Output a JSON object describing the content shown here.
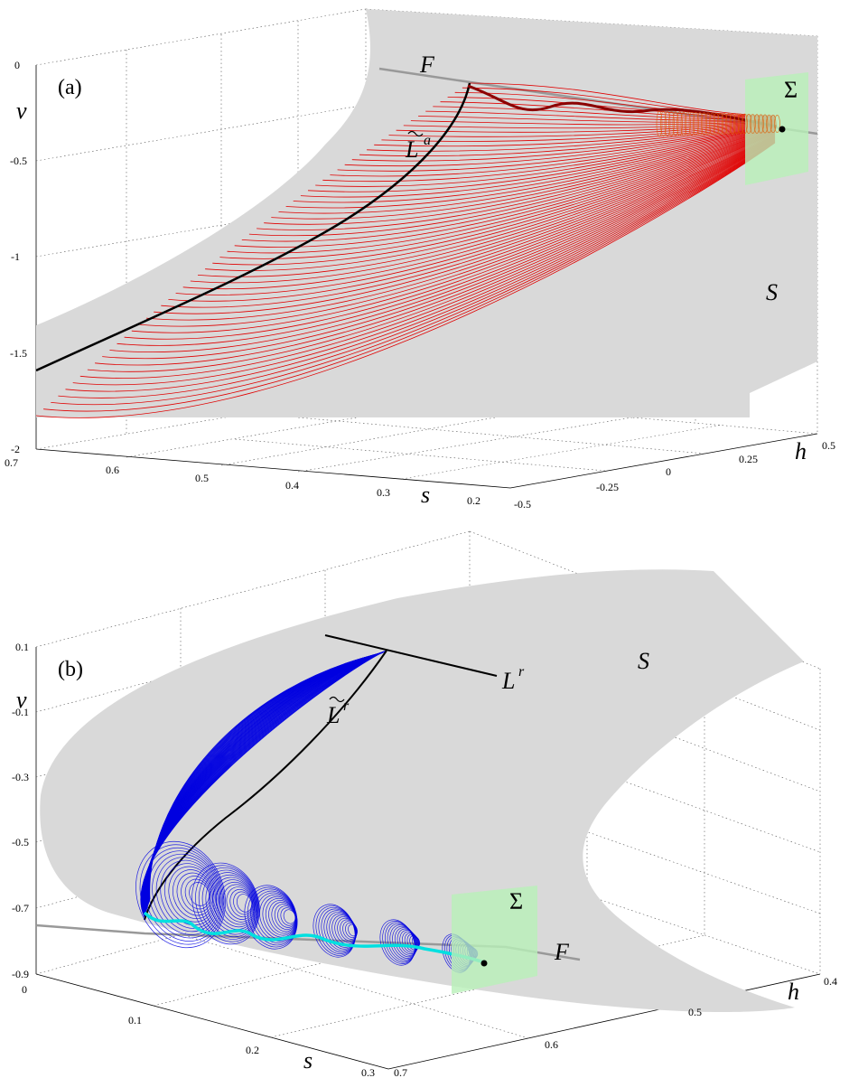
{
  "chart_data": [
    {
      "panel": "(a)",
      "type": "line",
      "axes": {
        "v": {
          "label": "v",
          "ticks": [
            "0",
            "-0.5",
            "-1",
            "-1.5",
            "-2"
          ]
        },
        "s": {
          "label": "s",
          "ticks": [
            "0.7",
            "0.6",
            "0.5",
            "0.4",
            "0.3",
            "0.2"
          ]
        },
        "h": {
          "label": "h",
          "ticks": [
            "-0.5",
            "-0.25",
            "0",
            "0.25",
            "0.5"
          ]
        }
      },
      "annotations": {
        "F": "F",
        "L": "L",
        "L_sup": "a",
        "Sigma": "Σ",
        "S": "S"
      },
      "colors": {
        "surface": "#d9d9d9",
        "trajectories": "#e00000",
        "curve": "#000000",
        "section": "#b8f0b8",
        "fold_line": "#999999"
      }
    },
    {
      "panel": "(b)",
      "type": "line",
      "axes": {
        "v": {
          "label": "v",
          "ticks": [
            "0.1",
            "-0.1",
            "-0.3",
            "-0.5",
            "-0.7",
            "-0.9"
          ]
        },
        "s": {
          "label": "s",
          "ticks": [
            "0",
            "0.1",
            "0.2",
            "0.3"
          ]
        },
        "h": {
          "label": "h",
          "ticks": [
            "0.7",
            "0.6",
            "0.5",
            "0.4"
          ]
        }
      },
      "annotations": {
        "F": "F",
        "L": "L",
        "L_sup": "r",
        "Lr": "L",
        "Lr_sup": "r",
        "Sigma": "Σ",
        "S": "S"
      },
      "colors": {
        "surface": "#d9d9d9",
        "trajectories": "#0000e0",
        "curve": "#000000",
        "center": "#00e0e0",
        "section": "#b8f0b8",
        "fold_line": "#999999"
      }
    }
  ]
}
